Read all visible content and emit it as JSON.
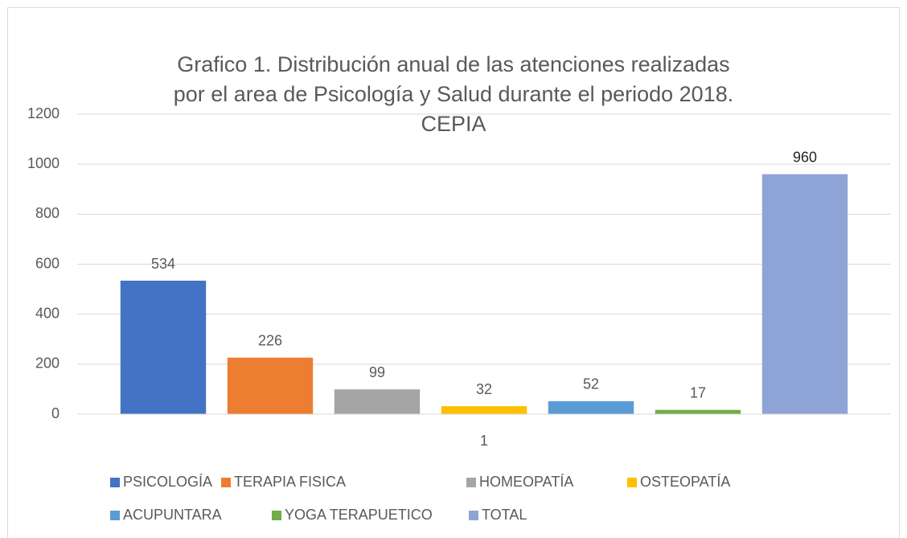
{
  "chart_data": {
    "type": "bar",
    "title": "Grafico 1. Distribución anual de las atenciones realizadas por el area de Psicología y Salud durante el periodo 2018. CEPIA",
    "categories": [
      "1"
    ],
    "series": [
      {
        "name": "PSICOLOGÍA",
        "color": "#4472c4",
        "values": [
          534
        ]
      },
      {
        "name": "TERAPIA FISICA",
        "color": "#ed7d31",
        "values": [
          226
        ]
      },
      {
        "name": "HOMEOPATÍA",
        "color": "#a5a5a5",
        "values": [
          99
        ]
      },
      {
        "name": "OSTEOPATÍA",
        "color": "#ffc000",
        "values": [
          32
        ]
      },
      {
        "name": "ACUPUNTARA",
        "color": "#5b9bd5",
        "values": [
          52
        ]
      },
      {
        "name": "YOGA TERAPUETICO",
        "color": "#70ad47",
        "values": [
          17
        ]
      },
      {
        "name": "TOTAL",
        "color": "#8fa4d6",
        "values": [
          960
        ]
      }
    ],
    "ylim": [
      0,
      1200
    ],
    "yticks": [
      0,
      200,
      400,
      600,
      800,
      1000,
      1200
    ],
    "grid": true,
    "legend": "bottom"
  }
}
